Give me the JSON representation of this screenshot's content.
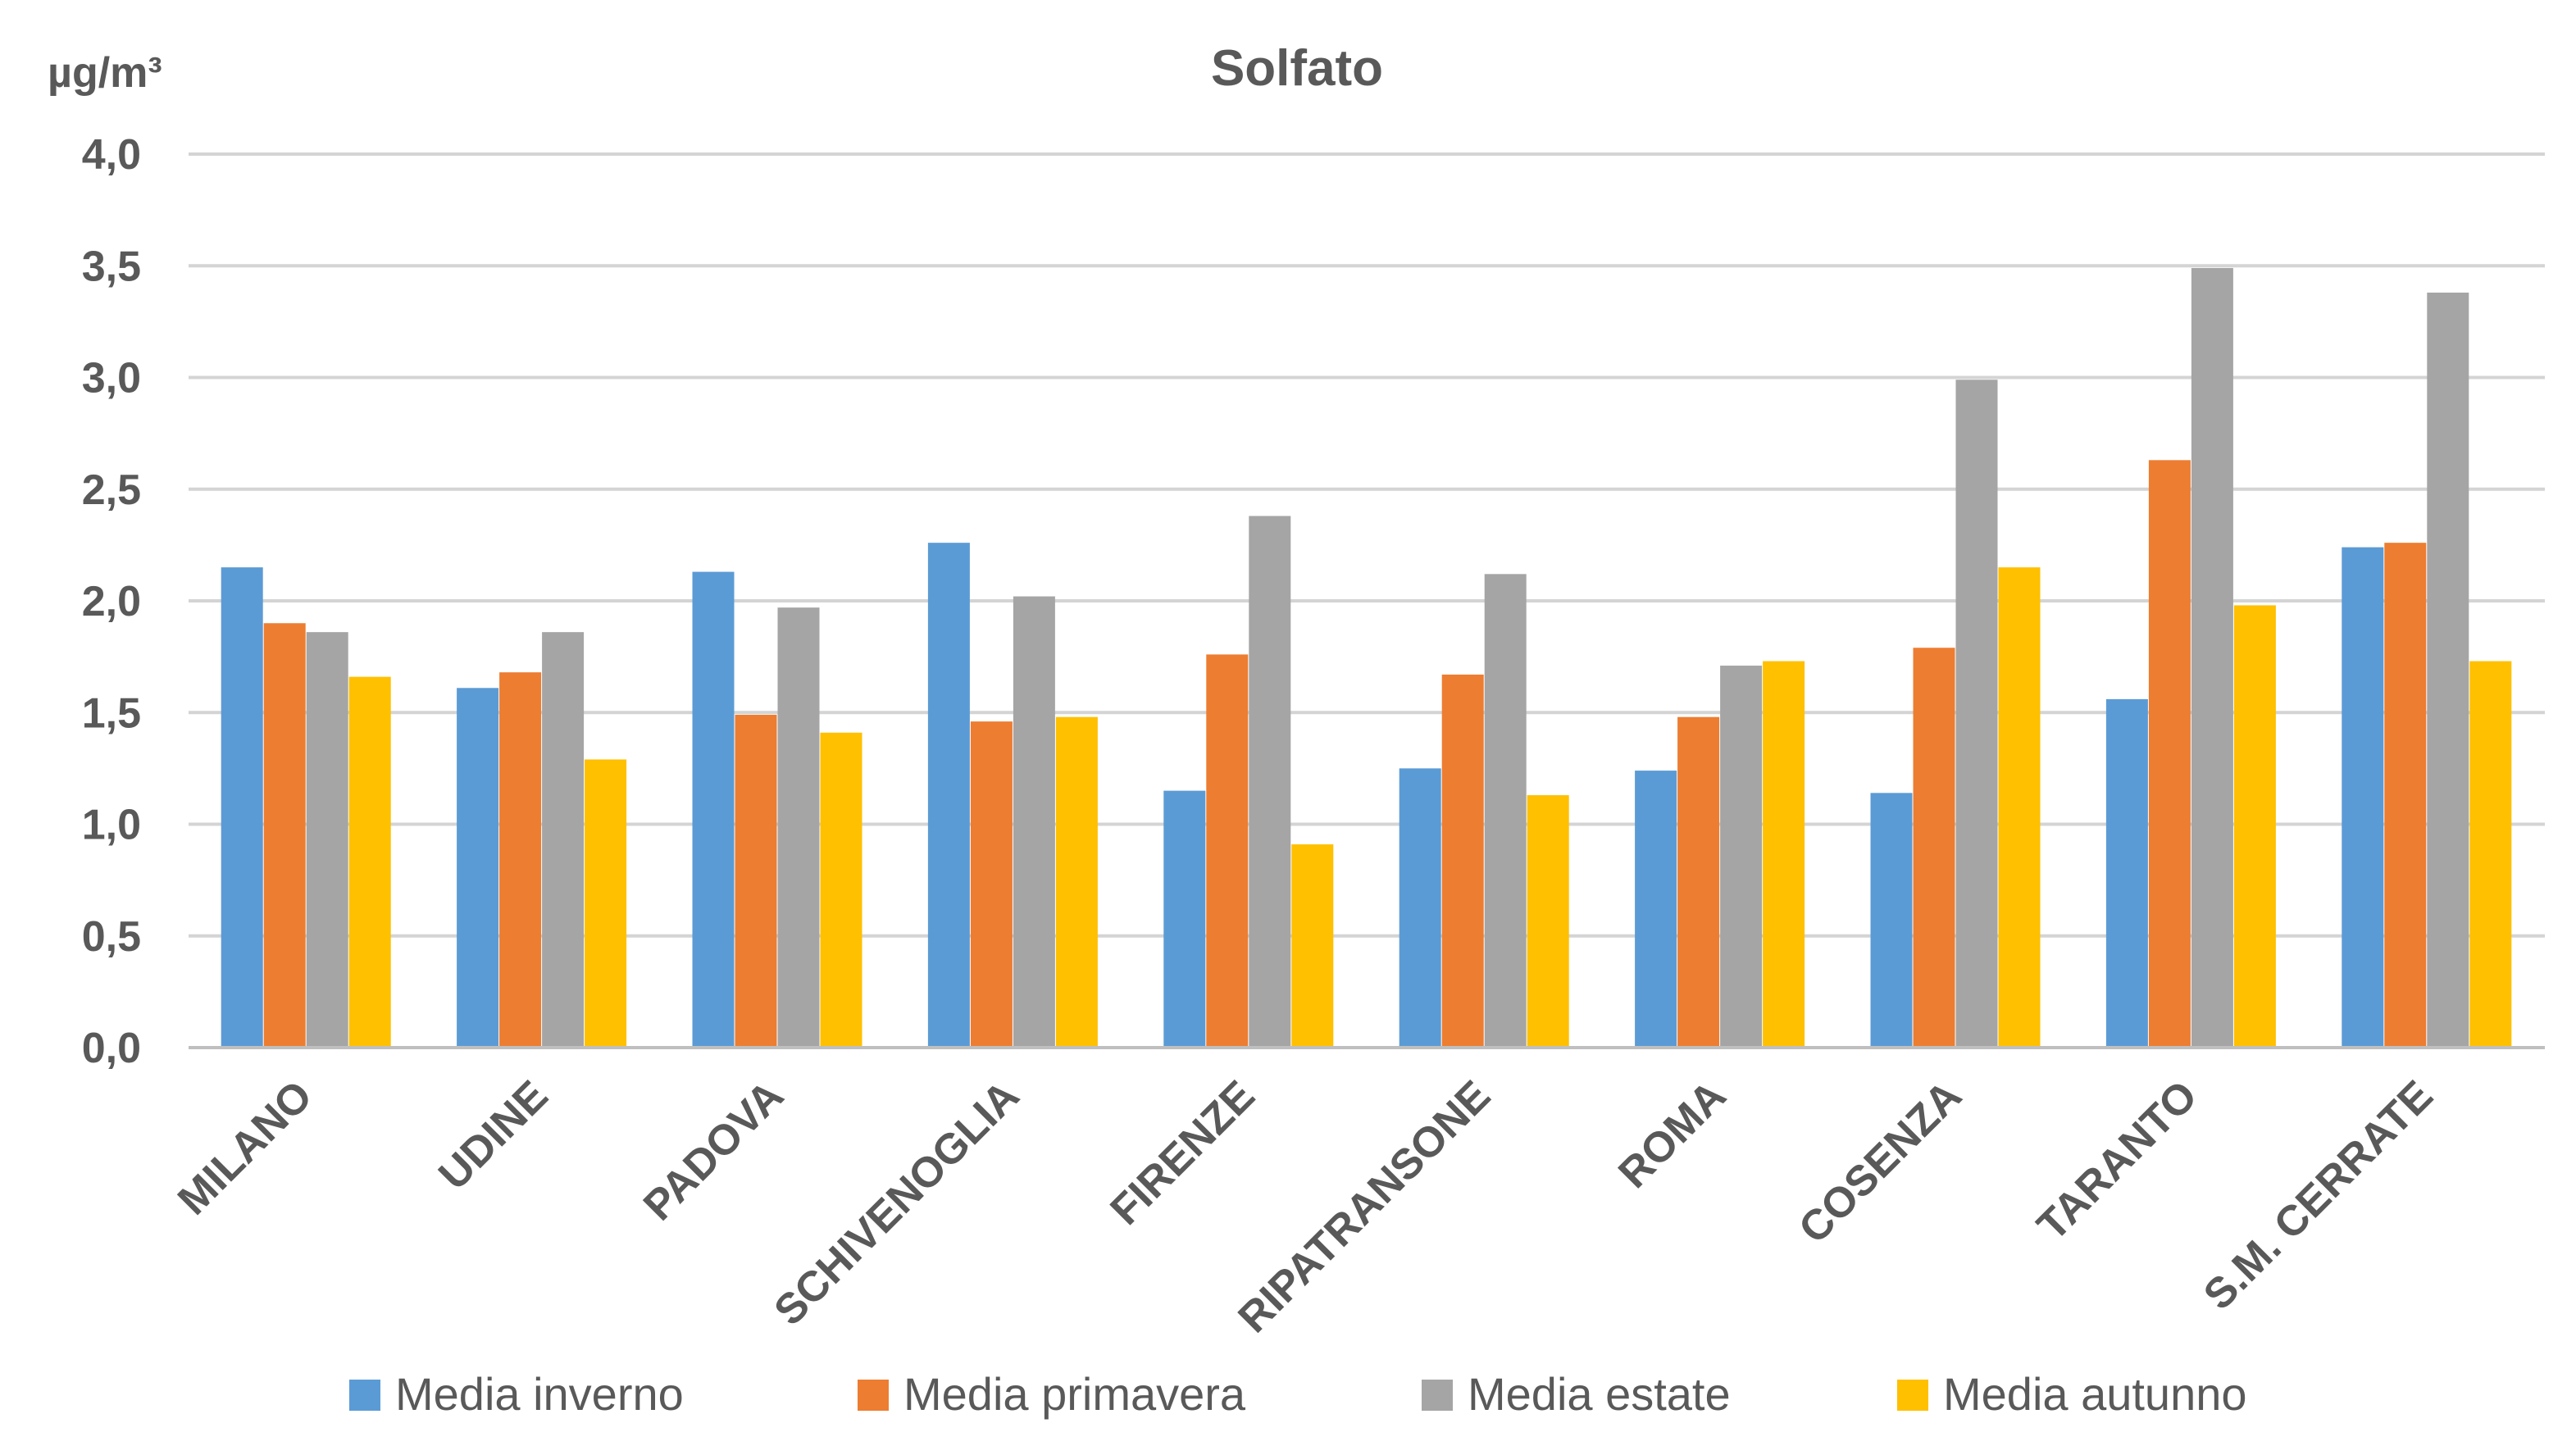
{
  "chart_data": {
    "type": "bar",
    "title": "Solfato",
    "ylabel": "µg/m³",
    "xlabel": "",
    "ylim": [
      0,
      4.0
    ],
    "ytick_step": 0.5,
    "ytick_labels": [
      "0,0",
      "0,5",
      "1,0",
      "1,5",
      "2,0",
      "2,5",
      "3,0",
      "3,5",
      "4,0"
    ],
    "grid": true,
    "legend_position": "bottom",
    "categories": [
      "MILANO",
      "UDINE",
      "PADOVA",
      "SCHIVENOGLIA",
      "FIRENZE",
      "RIPATRANSONE",
      "ROMA",
      "COSENZA",
      "TARANTO",
      "S.M. CERRATE"
    ],
    "series": [
      {
        "name": "Media inverno",
        "color": "#5b9bd5",
        "values": [
          2.15,
          1.61,
          2.13,
          2.26,
          1.15,
          1.25,
          1.24,
          1.14,
          1.56,
          2.24
        ]
      },
      {
        "name": "Media primavera",
        "color": "#ed7d31",
        "values": [
          1.9,
          1.68,
          1.49,
          1.46,
          1.76,
          1.67,
          1.48,
          1.79,
          2.63,
          2.26
        ]
      },
      {
        "name": "Media estate",
        "color": "#a5a5a5",
        "values": [
          1.86,
          1.86,
          1.97,
          2.02,
          2.38,
          2.12,
          1.71,
          2.99,
          3.49,
          3.38
        ]
      },
      {
        "name": "Media autunno",
        "color": "#ffc000",
        "values": [
          1.66,
          1.29,
          1.41,
          1.48,
          0.91,
          1.13,
          1.73,
          2.15,
          1.98,
          1.73
        ]
      }
    ]
  }
}
